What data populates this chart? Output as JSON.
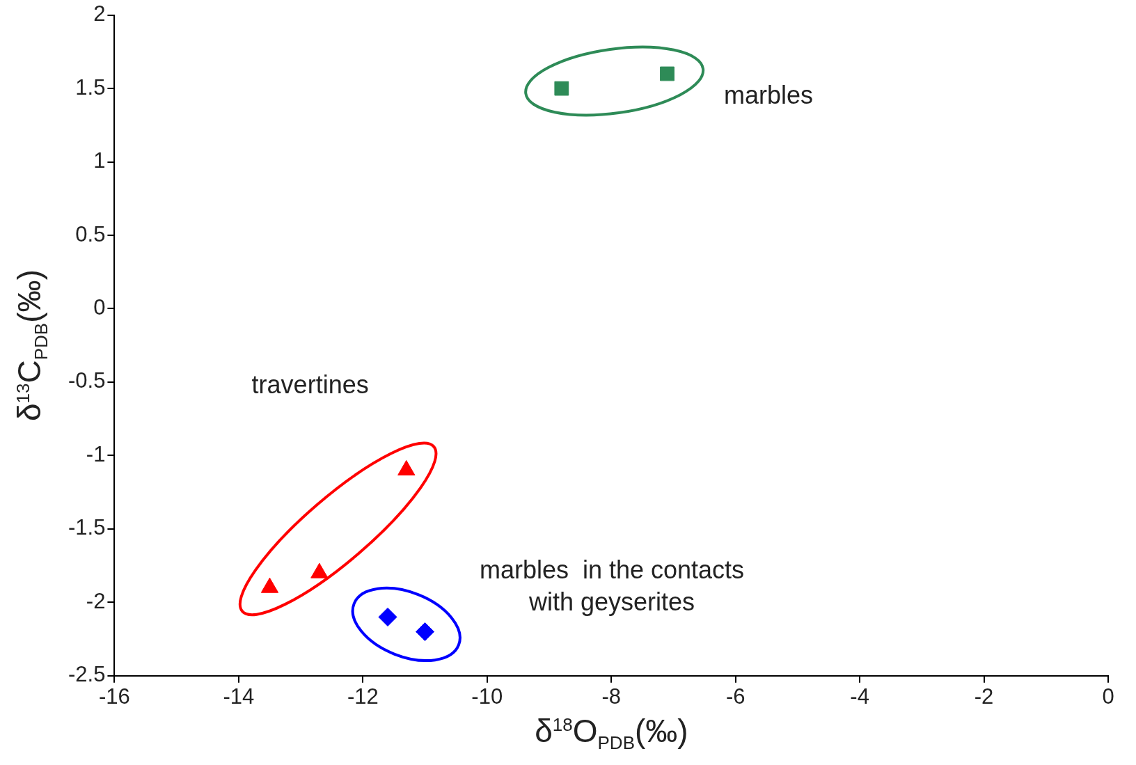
{
  "chart_data": {
    "type": "scatter",
    "xlabel": "δ$^{18}$O$_{PDB}$(‰)",
    "ylabel": "δ$^{13}$C$_{PDB}$(‰)",
    "xlim": [
      -16,
      0
    ],
    "xticks": [
      -16,
      -14,
      -12,
      -10,
      -8,
      -6,
      -4,
      -2,
      0
    ],
    "ylim": [
      -2.5,
      2
    ],
    "yticks": [
      -2.5,
      -2,
      -1.5,
      -1,
      -0.5,
      0,
      0.5,
      1,
      1.5,
      2
    ],
    "grid": false,
    "legend": false,
    "series": [
      {
        "name": "marbles",
        "color": "#2e8b57",
        "marker": "square",
        "x": [
          -8.8,
          -7.1
        ],
        "values": [
          1.5,
          1.6
        ]
      },
      {
        "name": "travertines",
        "color": "#ff0000",
        "marker": "triangle",
        "x": [
          -11.3,
          -12.7,
          -13.5
        ],
        "values": [
          -1.1,
          -1.8,
          -1.9
        ]
      },
      {
        "name": "marbles  in the contacts\nwith geyserites",
        "color": "#0000ff",
        "marker": "diamond",
        "x": [
          -11.6,
          -11.0
        ],
        "values": [
          -2.1,
          -2.2
        ]
      }
    ]
  }
}
